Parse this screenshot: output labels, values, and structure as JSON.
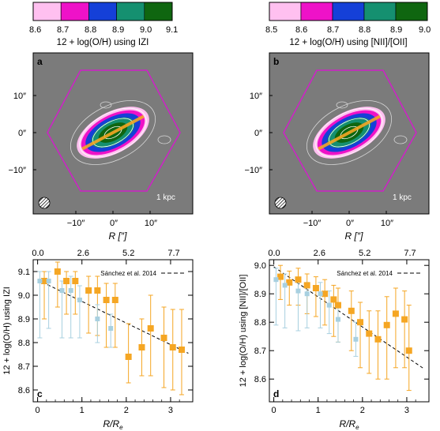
{
  "chart_data": [
    {
      "panel": "colorbar-left",
      "type": "colorbar",
      "colors": [
        "#ffc0f0",
        "#ee12c8",
        "#1540d8",
        "#159070",
        "#0f6610"
      ],
      "ticks": [
        "8.6",
        "8.7",
        "8.8",
        "8.9",
        "9.0",
        "9.1"
      ],
      "title": "12 + log(O/H) using IZI"
    },
    {
      "panel": "colorbar-right",
      "type": "colorbar",
      "colors": [
        "#ffc0f0",
        "#ee12c8",
        "#1540d8",
        "#159070",
        "#0f6610"
      ],
      "ticks": [
        "8.5",
        "8.6",
        "8.7",
        "8.8",
        "8.9",
        "9.0"
      ],
      "title": "12 + log(O/H) using [NII]/[OII]"
    },
    {
      "panel": "a",
      "type": "heatmap",
      "label": "a",
      "xticks": [
        "−10″",
        "0″",
        "10″"
      ],
      "yticks": [
        "10″",
        "0″",
        "−10″"
      ],
      "xlabel": "R [″]",
      "scalebar": "1 kpc"
    },
    {
      "panel": "b",
      "type": "heatmap",
      "label": "b",
      "xticks": [
        "−10″",
        "0″",
        "10″"
      ],
      "yticks": [
        "10″",
        "0″",
        "−10″"
      ],
      "xlabel": "R [″]",
      "scalebar": "1 kpc"
    },
    {
      "panel": "c",
      "type": "scatter",
      "label": "c",
      "xlim": [
        -0.1,
        3.5
      ],
      "ylim": [
        8.55,
        9.15
      ],
      "xticks": [
        0,
        1,
        2,
        3
      ],
      "yticks": [
        8.6,
        8.7,
        8.8,
        8.9,
        9.0,
        9.1
      ],
      "ytick_labels": [
        "8.6",
        "8.7",
        "8.8",
        "8.9",
        "9.0",
        "9.1"
      ],
      "top_ticks": [
        "0.0",
        "2.6",
        "5.2",
        "7.7"
      ],
      "xlabel": "R/Re",
      "ylabel": "12 + log(O/H) using IZI",
      "legend": "Sánchez et al. 2014",
      "fit_line": {
        "x": [
          0.0,
          3.4
        ],
        "y": [
          9.065,
          8.755
        ]
      },
      "series": [
        {
          "color": "#f5a623",
          "marker": "square",
          "size": 8,
          "x": [
            0.15,
            0.45,
            0.65,
            0.85,
            1.15,
            1.35,
            1.55,
            1.75,
            2.05,
            2.35,
            2.55,
            2.85,
            3.05,
            3.25
          ],
          "y": [
            9.06,
            9.1,
            9.06,
            9.06,
            9.02,
            9.02,
            8.98,
            8.98,
            8.74,
            8.78,
            8.86,
            8.82,
            8.78,
            8.77
          ],
          "err_lo": [
            0.16,
            0.15,
            0.14,
            0.14,
            0.18,
            0.19,
            0.2,
            0.2,
            0.11,
            0.12,
            0.2,
            0.21,
            0.18,
            0.19
          ],
          "err_hi": [
            0.04,
            0.04,
            0.04,
            0.04,
            0.06,
            0.06,
            0.07,
            0.07,
            0.14,
            0.12,
            0.14,
            0.13,
            0.16,
            0.17
          ]
        },
        {
          "color": "#a8d0e0",
          "marker": "square",
          "size": 6,
          "x": [
            0.05,
            0.25,
            0.55,
            0.75,
            0.95,
            1.35,
            1.65
          ],
          "y": [
            9.06,
            9.06,
            9.02,
            9.02,
            8.98,
            8.9,
            8.86
          ],
          "err_lo": [
            0.24,
            0.2,
            0.2,
            0.2,
            0.16,
            0.1,
            0.08
          ],
          "err_hi": [
            0.04,
            0.04,
            0.04,
            0.06,
            0.06,
            0.06,
            0.06
          ]
        }
      ]
    },
    {
      "panel": "d",
      "type": "scatter",
      "label": "d",
      "xlim": [
        -0.1,
        3.5
      ],
      "ylim": [
        8.52,
        9.02
      ],
      "xticks": [
        0,
        1,
        2,
        3
      ],
      "yticks": [
        8.6,
        8.7,
        8.8,
        8.9,
        9.0
      ],
      "ytick_labels": [
        "8.6",
        "8.7",
        "8.8",
        "8.9",
        "9.0"
      ],
      "top_ticks": [
        "0.0",
        "2.6",
        "5.2",
        "7.7"
      ],
      "xlabel": "R/Re",
      "ylabel": "12 + log(O/H) using [NII]/[OII]",
      "legend": "Sánchez et al. 2014",
      "fit_line": {
        "x": [
          0.0,
          3.4
        ],
        "y": [
          8.995,
          8.635
        ]
      },
      "series": [
        {
          "color": "#f5a623",
          "marker": "square",
          "size": 8,
          "x": [
            0.15,
            0.35,
            0.55,
            0.75,
            0.95,
            1.15,
            1.35,
            1.45,
            1.75,
            1.95,
            2.15,
            2.35,
            2.55,
            2.75,
            2.95,
            3.05
          ],
          "y": [
            8.96,
            8.94,
            8.95,
            8.93,
            8.92,
            8.9,
            8.88,
            8.86,
            8.84,
            8.8,
            8.76,
            8.74,
            8.79,
            8.83,
            8.81,
            8.7
          ],
          "err_lo": [
            0.08,
            0.08,
            0.09,
            0.1,
            0.1,
            0.11,
            0.13,
            0.13,
            0.14,
            0.16,
            0.14,
            0.14,
            0.19,
            0.19,
            0.17,
            0.14
          ],
          "err_hi": [
            0.04,
            0.04,
            0.04,
            0.04,
            0.04,
            0.05,
            0.05,
            0.06,
            0.07,
            0.07,
            0.08,
            0.1,
            0.1,
            0.09,
            0.1,
            0.16
          ]
        },
        {
          "color": "#a8d0e0",
          "marker": "square",
          "size": 6,
          "x": [
            0.05,
            0.25,
            0.55,
            0.75,
            1.05,
            1.25,
            1.45,
            1.85
          ],
          "y": [
            8.95,
            8.93,
            8.91,
            8.9,
            8.9,
            8.86,
            8.81,
            8.74
          ],
          "err_lo": [
            0.16,
            0.15,
            0.14,
            0.12,
            0.12,
            0.1,
            0.08,
            0.06
          ],
          "err_hi": [
            0.04,
            0.04,
            0.03,
            0.04,
            0.04,
            0.05,
            0.05,
            0.06
          ]
        }
      ]
    }
  ]
}
